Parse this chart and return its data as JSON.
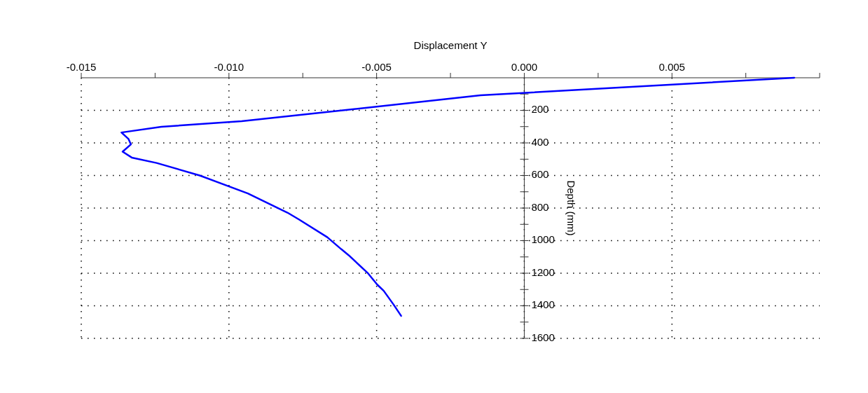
{
  "chart_data": {
    "type": "line",
    "xlabel": "Displacement Y",
    "ylabel": "Depth (mm)",
    "xlim": [
      -0.015,
      0.01
    ],
    "ylim": [
      1600,
      0
    ],
    "xticks": [
      {
        "value": -0.015,
        "label": "-0.015"
      },
      {
        "value": -0.0125,
        "label": null
      },
      {
        "value": -0.01,
        "label": "-0.010"
      },
      {
        "value": -0.0075,
        "label": null
      },
      {
        "value": -0.005,
        "label": "-0.005"
      },
      {
        "value": -0.0025,
        "label": null
      },
      {
        "value": 0,
        "label": "0.000"
      },
      {
        "value": 0.0025,
        "label": null
      },
      {
        "value": 0.005,
        "label": "0.005"
      },
      {
        "value": 0.0075,
        "label": null
      },
      {
        "value": 0.01,
        "label": null
      }
    ],
    "yticks": [
      {
        "value": 100,
        "label": null
      },
      200,
      {
        "value": 300,
        "label": null
      },
      400,
      {
        "value": 500,
        "label": null
      },
      600,
      {
        "value": 700,
        "label": null
      },
      800,
      {
        "value": 900,
        "label": null
      },
      1000,
      {
        "value": 1100,
        "label": null
      },
      1200,
      {
        "value": 1300,
        "label": null
      },
      1400,
      {
        "value": 1500,
        "label": null
      },
      1600
    ],
    "grid": true,
    "line_style": "solid",
    "series": [
      {
        "color": "#0000ff",
        "x": [
          0.00914,
          -0.00148,
          -0.00957,
          -0.01229,
          -0.01364,
          -0.0134,
          -0.01332,
          -0.0136,
          -0.01329,
          -0.01245,
          -0.01099,
          -0.00936,
          -0.00802,
          -0.00764,
          -0.00667,
          -0.0062,
          -0.00595,
          -0.00531,
          -0.00498,
          -0.00476,
          -0.00442,
          -0.00417
        ],
        "values": [
          0,
          108,
          267,
          301,
          336,
          376,
          409,
          454,
          490,
          523,
          600,
          710,
          828,
          869,
          979,
          1052,
          1089,
          1197,
          1270,
          1308,
          1394,
          1462
        ]
      }
    ]
  }
}
